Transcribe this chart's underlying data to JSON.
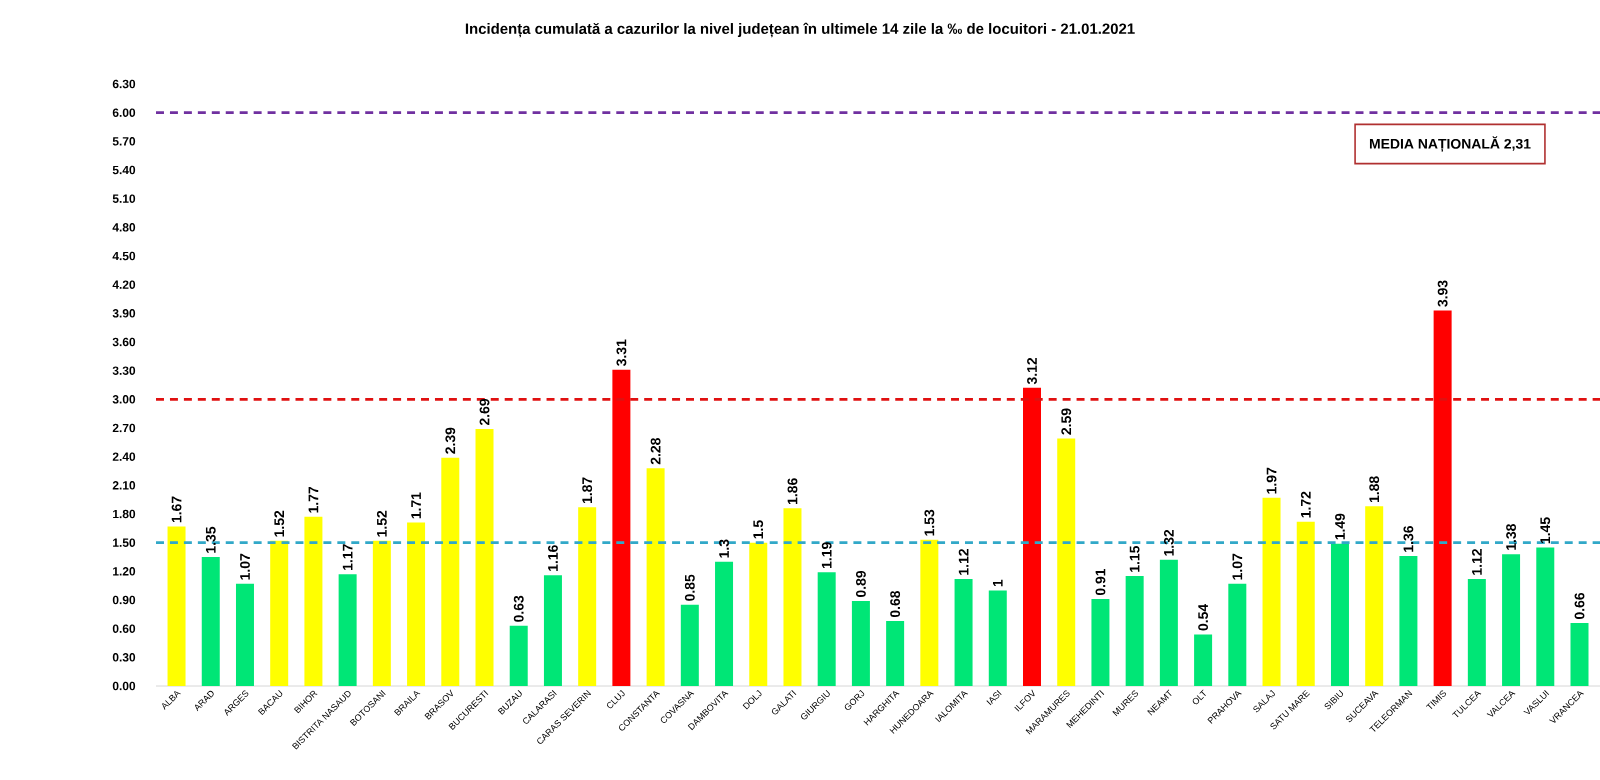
{
  "chart_data": {
    "type": "bar",
    "title": "Incidența cumulată a cazurilor la nivel județean în ultimele 14 zile la ‰ de locuitori - 21.01.2021",
    "categories": [
      "ALBA",
      "ARAD",
      "ARGES",
      "BACAU",
      "BIHOR",
      "BISTRITA NASAUD",
      "BOTOSANI",
      "BRAILA",
      "BRASOV",
      "BUCURESTI",
      "BUZAU",
      "CALARASI",
      "CARAS SEVERIN",
      "CLUJ",
      "CONSTANTA",
      "COVASNA",
      "DAMBOVITA",
      "DOLJ",
      "GALATI",
      "GIURGIU",
      "GORJ",
      "HARGHITA",
      "HUNEDOARA",
      "IALOMITA",
      "IASI",
      "ILFOV",
      "MARAMURES",
      "MEHEDINTI",
      "MURES",
      "NEAMT",
      "OLT",
      "PRAHOVA",
      "SALAJ",
      "SATU MARE",
      "SIBIU",
      "SUCEAVA",
      "TELEORMAN",
      "TIMIS",
      "TULCEA",
      "VALCEA",
      "VASLUI",
      "VRANCEA"
    ],
    "values": [
      1.67,
      1.35,
      1.07,
      1.52,
      1.77,
      1.17,
      1.52,
      1.71,
      2.39,
      2.69,
      0.63,
      1.16,
      1.87,
      3.31,
      2.28,
      0.85,
      1.3,
      1.5,
      1.86,
      1.19,
      0.89,
      0.68,
      1.53,
      1.12,
      1,
      3.12,
      2.59,
      0.91,
      1.15,
      1.32,
      0.54,
      1.07,
      1.97,
      1.72,
      1.49,
      1.88,
      1.36,
      3.93,
      1.12,
      1.38,
      1.45,
      0.66
    ],
    "colors": [
      "#ffff00",
      "#00e676",
      "#00e676",
      "#ffff00",
      "#ffff00",
      "#00e676",
      "#ffff00",
      "#ffff00",
      "#ffff00",
      "#ffff00",
      "#00e676",
      "#00e676",
      "#ffff00",
      "#ff0000",
      "#ffff00",
      "#00e676",
      "#00e676",
      "#ffff00",
      "#ffff00",
      "#00e676",
      "#00e676",
      "#00e676",
      "#ffff00",
      "#00e676",
      "#00e676",
      "#ff0000",
      "#ffff00",
      "#00e676",
      "#00e676",
      "#00e676",
      "#00e676",
      "#00e676",
      "#ffff00",
      "#ffff00",
      "#00e676",
      "#ffff00",
      "#00e676",
      "#ff0000",
      "#00e676",
      "#00e676",
      "#00e676",
      "#00e676"
    ],
    "data_labels": true,
    "ylim": [
      0,
      6.3
    ],
    "yticks": [
      {
        "value": 0,
        "label": "0.00"
      },
      {
        "value": 0.3,
        "label": "0.30"
      },
      {
        "value": 0.6,
        "label": "0.60"
      },
      {
        "value": 0.9,
        "label": "0.90"
      },
      {
        "value": 1.2,
        "label": "1.20"
      },
      {
        "value": 1.5,
        "label": "1.50"
      },
      {
        "value": 1.8,
        "label": "1.80"
      },
      {
        "value": 2.1,
        "label": "2.10"
      },
      {
        "value": 2.4,
        "label": "2.40"
      },
      {
        "value": 2.7,
        "label": "2.70"
      },
      {
        "value": 3.0,
        "label": "3.00"
      },
      {
        "value": 3.3,
        "label": "3.30"
      },
      {
        "value": 3.6,
        "label": "3.60"
      },
      {
        "value": 3.9,
        "label": "3.90"
      },
      {
        "value": 4.2,
        "label": "4.20"
      },
      {
        "value": 4.5,
        "label": "4.50"
      },
      {
        "value": 4.8,
        "label": "4.80"
      },
      {
        "value": 5.1,
        "label": "5.10"
      },
      {
        "value": 5.4,
        "label": "5.40"
      },
      {
        "value": 5.7,
        "label": "5.70"
      },
      {
        "value": 6.0,
        "label": "6.00"
      },
      {
        "value": 6.3,
        "label": "6.30"
      }
    ],
    "ref_lines": [
      {
        "axis": "y",
        "value": 6,
        "color": "#7030a0",
        "line_style": "dashed"
      },
      {
        "axis": "y",
        "value": 3,
        "color": "#e01010",
        "line_style": "dashed"
      },
      {
        "axis": "y",
        "value": 1.5,
        "color": "#31a8c8",
        "line_style": "dashed"
      }
    ],
    "annotations": [
      "MEDIA NAȚIONALĂ 2,31"
    ]
  }
}
